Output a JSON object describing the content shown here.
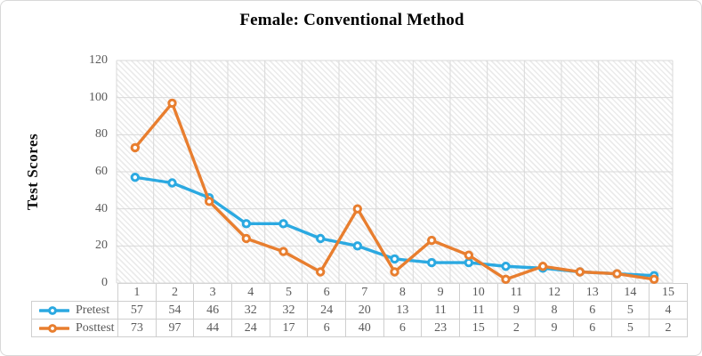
{
  "title": "Female: Conventional Method",
  "y_axis": {
    "label": "Test Scores",
    "ticks": [
      0,
      20,
      40,
      60,
      80,
      100,
      120
    ]
  },
  "colors": {
    "pretest": "#2BA9E1",
    "posttest": "#E87E2F",
    "gridline": "#d9d9d9",
    "axis_text": "#5a5a5a",
    "marker_fill": "#ffffff"
  },
  "chart_data": {
    "type": "line",
    "title": "Female: Conventional Method",
    "xlabel": "",
    "ylabel": "Test Scores",
    "ylim": [
      0,
      120
    ],
    "y_tick_step": 20,
    "grid": true,
    "plot_area_fill": "light-diagonal-hatch",
    "legend_position": "table-left",
    "categories": [
      "1",
      "2",
      "3",
      "4",
      "5",
      "6",
      "7",
      "8",
      "9",
      "10",
      "11",
      "12",
      "13",
      "14",
      "15"
    ],
    "series": [
      {
        "name": "Pretest",
        "color": "#2BA9E1",
        "values": [
          57,
          54,
          46,
          32,
          32,
          24,
          20,
          13,
          11,
          11,
          9,
          8,
          6,
          5,
          4
        ]
      },
      {
        "name": "Posttest",
        "color": "#E87E2F",
        "values": [
          73,
          97,
          44,
          24,
          17,
          6,
          40,
          6,
          23,
          15,
          2,
          9,
          6,
          5,
          2
        ]
      }
    ]
  }
}
